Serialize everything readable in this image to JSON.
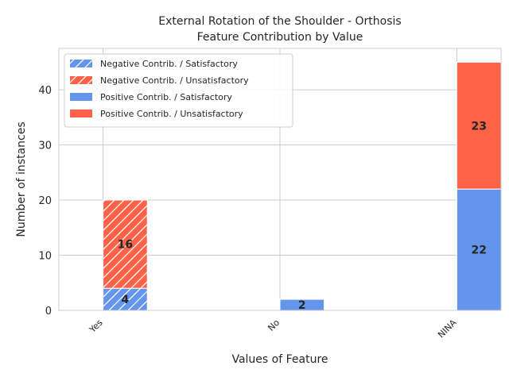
{
  "chart_data": {
    "type": "bar",
    "stacked": true,
    "title": [
      "External Rotation of the Shoulder - Orthosis",
      "Feature Contribution by Value"
    ],
    "xlabel": "Values of Feature",
    "ylabel": "Number of instances",
    "categories": [
      "Yes",
      "No",
      "NINA"
    ],
    "ylim": [
      0,
      47.5
    ],
    "yticks": [
      0,
      10,
      20,
      30,
      40
    ],
    "grid": true,
    "legend_position": "top-left",
    "groups": [
      {
        "name": "Negative Contrib.",
        "hatched": true,
        "series": [
          {
            "name": "Negative Contrib. / Satisfactory",
            "color": "#6495ED",
            "values": [
              4,
              0,
              0
            ]
          },
          {
            "name": "Negative Contrib. / Unsatisfactory",
            "color": "#FF6347",
            "values": [
              16,
              0,
              0
            ]
          }
        ]
      },
      {
        "name": "Positive Contrib.",
        "hatched": false,
        "series": [
          {
            "name": "Positive Contrib. / Satisfactory",
            "color": "#6495ED",
            "values": [
              0,
              2,
              22
            ]
          },
          {
            "name": "Positive Contrib. / Unsatisfactory",
            "color": "#FF6347",
            "values": [
              0,
              0,
              23
            ]
          }
        ]
      }
    ]
  }
}
